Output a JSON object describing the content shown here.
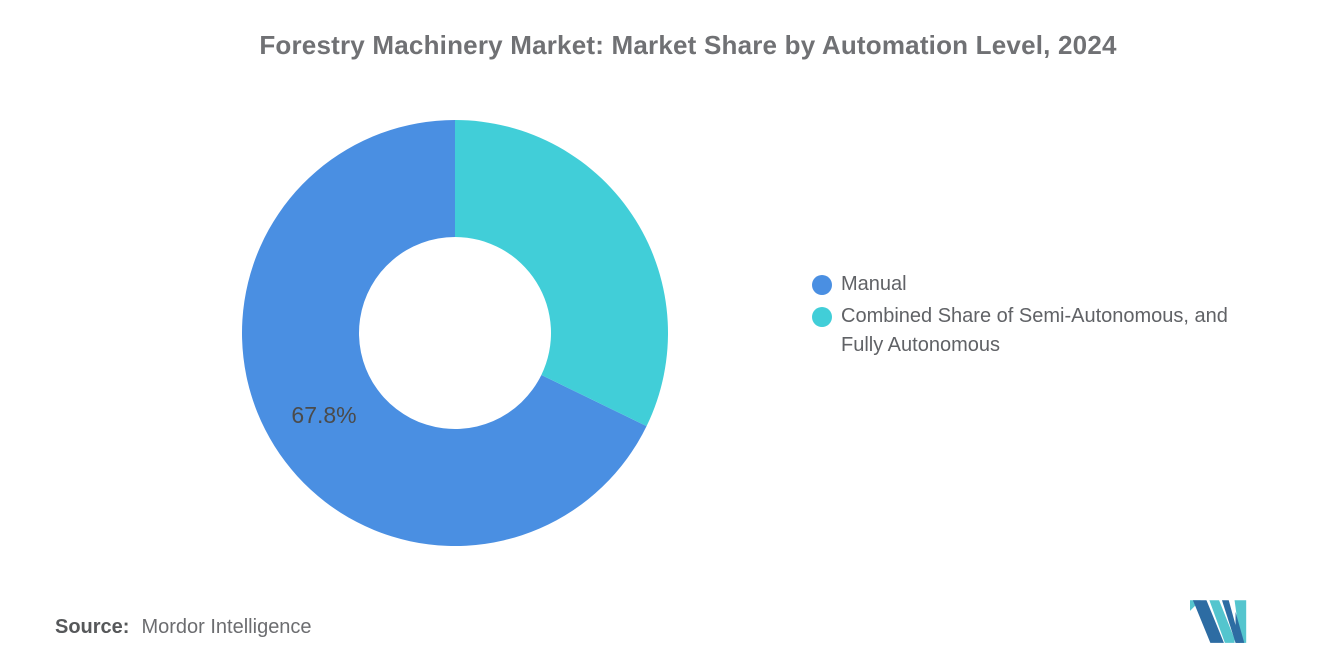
{
  "title": {
    "text": "Forestry Machinery Market: Market Share by Automation Level, 2024",
    "color": "#707174"
  },
  "chart_data": {
    "type": "pie",
    "subtype": "donut",
    "title": "Forestry Machinery Market: Market Share by Automation Level, 2024",
    "start_angle": "top",
    "direction": "counterclockwise",
    "inner_radius_ratio": 0.45,
    "legend_position": "right",
    "data_label_color": "#4b4b4b",
    "slices": [
      {
        "label": "Manual",
        "value": 67.8,
        "color": "#4a8fe2",
        "data_label": "67.8%"
      },
      {
        "label": "Combined Share of Semi-Autonomous, and Fully Autonomous",
        "value": 32.2,
        "color": "#41ced8",
        "data_label": ""
      }
    ]
  },
  "source": {
    "prefix": "Source:",
    "text": "Mordor Intelligence"
  },
  "logo": {
    "name": "mordor-intelligence-logo",
    "navy": "#2d6ca3",
    "teal": "#54c5ce"
  }
}
